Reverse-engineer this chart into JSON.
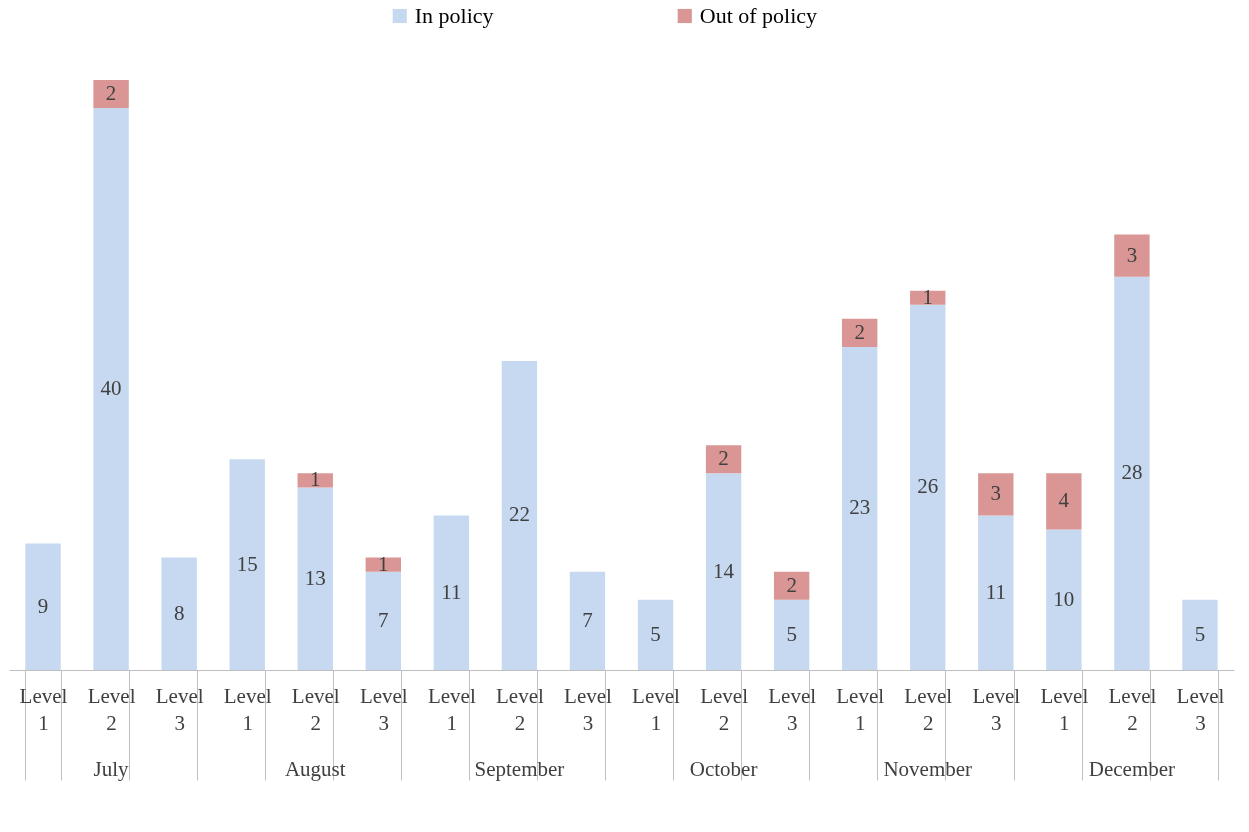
{
  "chart_data": {
    "type": "bar",
    "stacked": true,
    "data_labels": true,
    "legend": "top",
    "grid": false,
    "categories": [
      "Level 1",
      "Level 2",
      "Level 3",
      "Level 1",
      "Level 2",
      "Level 3",
      "Level 1",
      "Level 2",
      "Level 3",
      "Level 1",
      "Level 2",
      "Level 3",
      "Level 1",
      "Level 2",
      "Level 3",
      "Level 1",
      "Level 2",
      "Level 3"
    ],
    "series": [
      {
        "name": "In policy",
        "color": "#c6d9f1",
        "values": [
          9,
          40,
          8,
          15,
          13,
          7,
          11,
          22,
          7,
          5,
          14,
          5,
          23,
          26,
          11,
          10,
          28,
          5
        ]
      },
      {
        "name": "Out of policy",
        "color": "#d99694",
        "values": [
          null,
          2,
          null,
          null,
          1,
          1,
          null,
          null,
          null,
          null,
          2,
          2,
          2,
          1,
          3,
          4,
          3,
          null
        ]
      }
    ],
    "annotations": [
      "July",
      "August",
      "September",
      "October",
      "November",
      "December"
    ]
  }
}
